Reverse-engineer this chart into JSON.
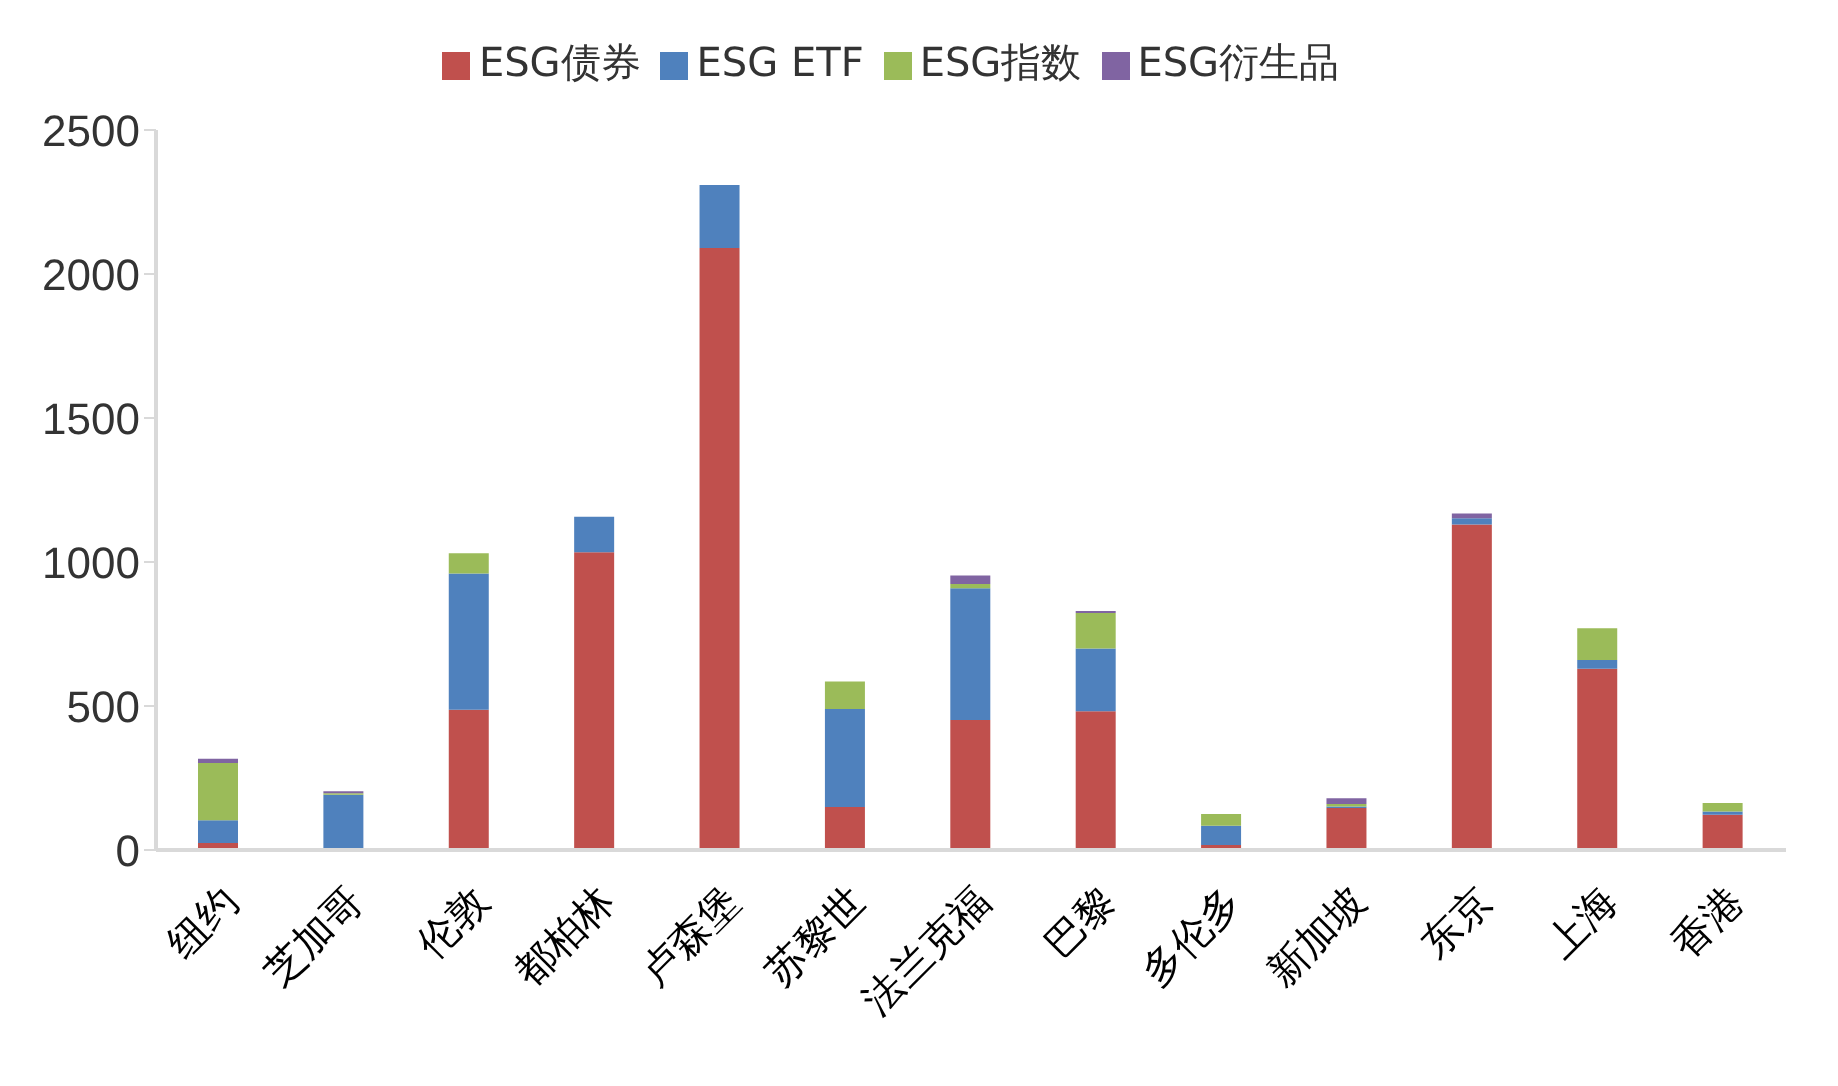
{
  "chart_data": {
    "type": "bar",
    "stacked": true,
    "categories": [
      "纽约",
      "芝加哥",
      "伦敦",
      "都柏林",
      "卢森堡",
      "苏黎世",
      "法兰克福",
      "巴黎",
      "多伦多",
      "新加坡",
      "东京",
      "上海",
      "香港"
    ],
    "series": [
      {
        "name": "ESG债券",
        "color": "#c0504d",
        "values": [
          24,
          0,
          487,
          1034,
          2090,
          149,
          451,
          482,
          17,
          146,
          1130,
          629,
          122
        ]
      },
      {
        "name": "ESG ETF",
        "color": "#4f81bd",
        "values": [
          79,
          192,
          473,
          123,
          219,
          341,
          458,
          218,
          67,
          5,
          22,
          31,
          12
        ]
      },
      {
        "name": "ESG指数",
        "color": "#9bbb59",
        "values": [
          199,
          5,
          70,
          0,
          0,
          95,
          15,
          123,
          41,
          9,
          0,
          110,
          29
        ]
      },
      {
        "name": "ESG衍生品",
        "color": "#8064a2",
        "values": [
          15,
          7,
          0,
          0,
          0,
          0,
          29,
          7,
          0,
          20,
          16,
          0,
          0
        ]
      }
    ],
    "ylim": [
      0,
      2500
    ],
    "yticks": [
      0,
      500,
      1000,
      1500,
      2000,
      2500
    ],
    "grid": false,
    "legend": "top"
  }
}
